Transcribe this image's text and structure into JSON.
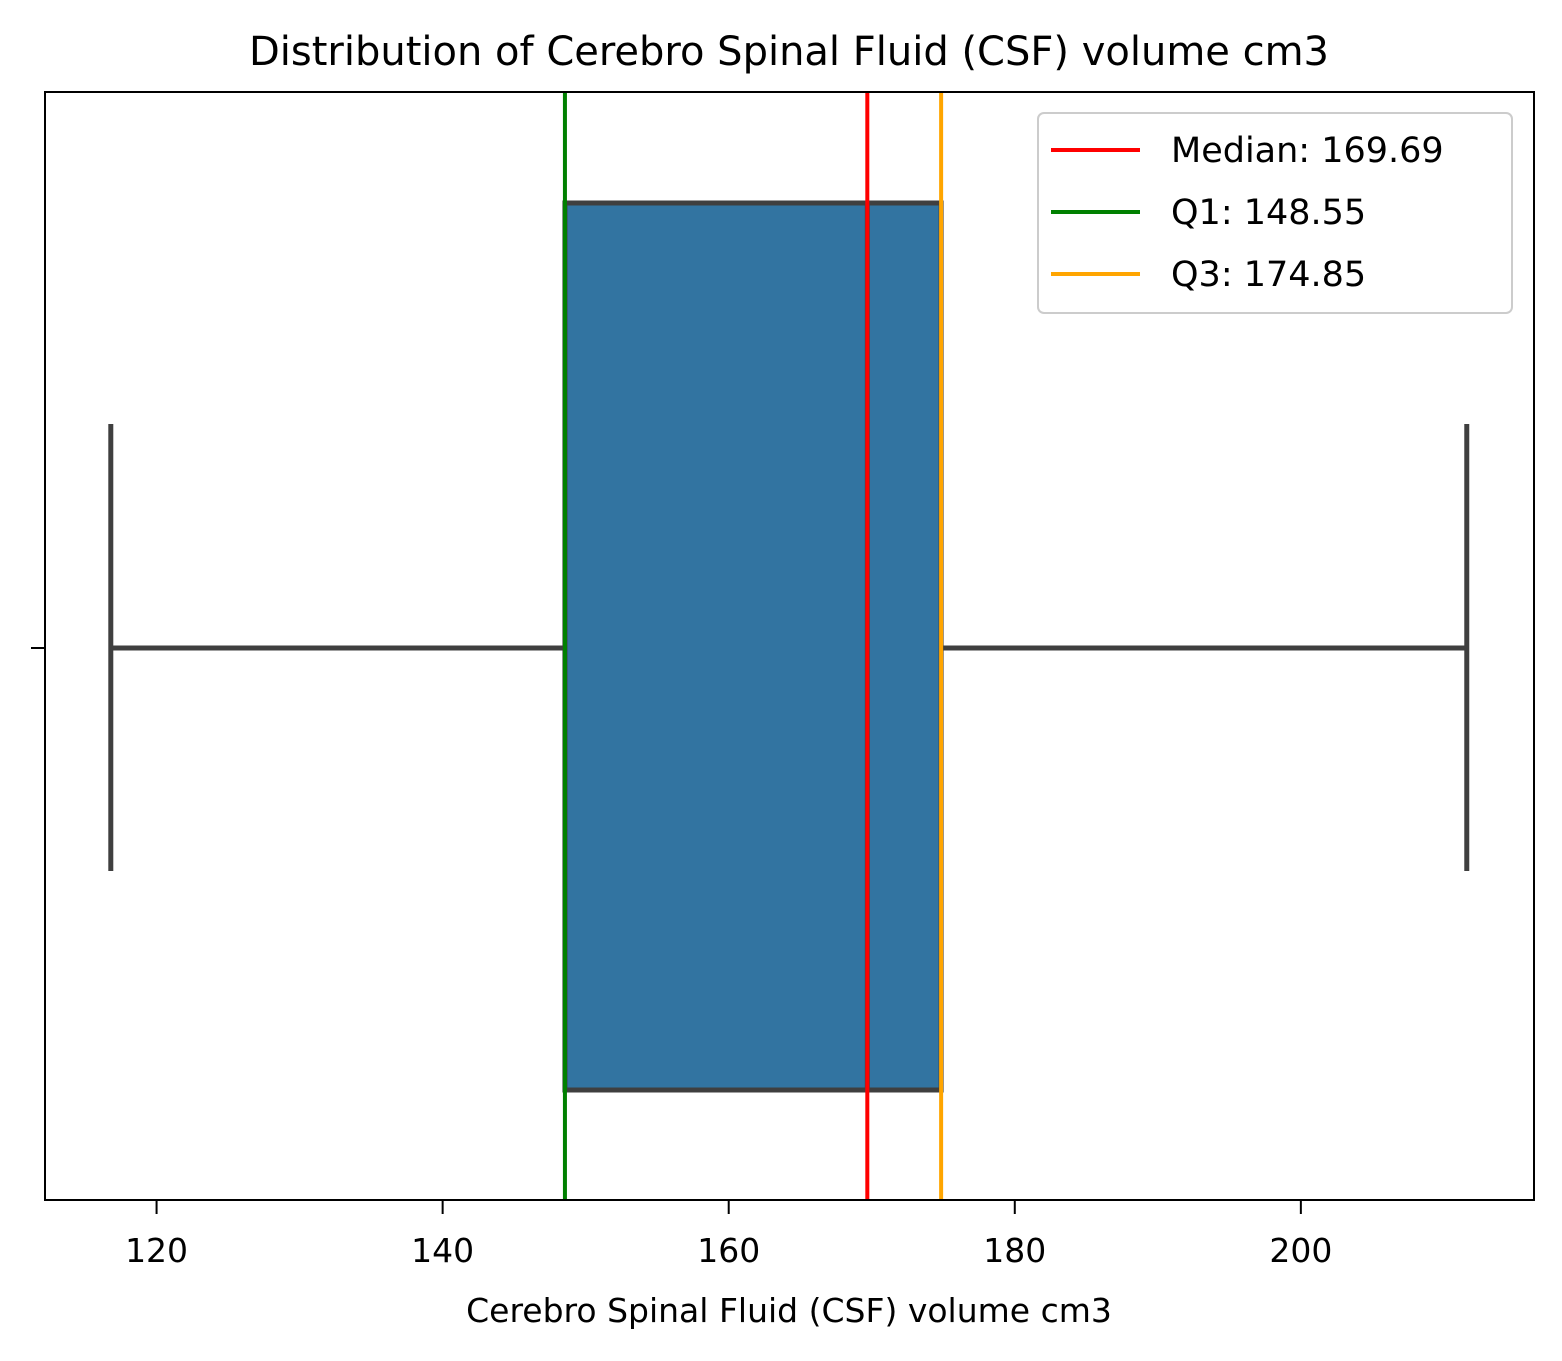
{
  "chart_data": {
    "type": "box",
    "title": "Distribution of Cerebro Spinal Fluid (CSF) volume cm3",
    "xlabel": "Cerebro Spinal Fluid (CSF) volume cm3",
    "ylabel": "",
    "xlim": [
      112.2,
      216.3
    ],
    "xticks": [
      120,
      140,
      160,
      180,
      200
    ],
    "xtick_labels": [
      "120",
      "140",
      "160",
      "180",
      "200"
    ],
    "grid": false,
    "legend_position": "top-right",
    "box": {
      "whisker_low": 116.8,
      "q1": 148.55,
      "median": 169.69,
      "q3": 174.85,
      "whisker_high": 211.6,
      "fill_color": "#3274a1",
      "line_color": "#3f3f3f"
    },
    "reference_lines": [
      {
        "label": "Median: 169.69",
        "value": 169.69,
        "color": "#ff0000"
      },
      {
        "label": "Q1: 148.55",
        "value": 148.55,
        "color": "#008000"
      },
      {
        "label": "Q3: 174.85",
        "value": 174.85,
        "color": "#ffa500"
      }
    ]
  }
}
